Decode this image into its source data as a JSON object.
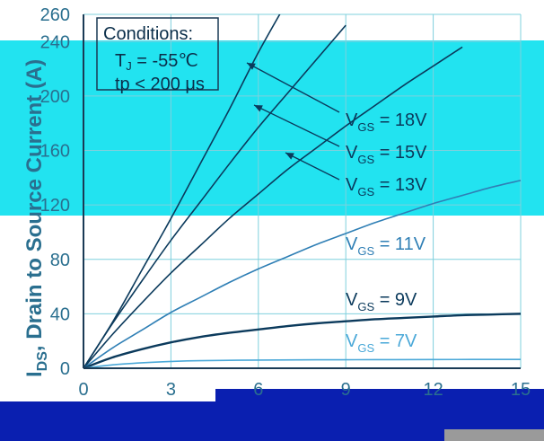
{
  "colors": {
    "cyan_band": "#22e3f0",
    "bottom_bar": "#0a1fb0",
    "bottom_gray": "#9a9a9a",
    "axis": "#1a3a55",
    "grid": "#7fd0dd",
    "dark_curve": "#0b3a5c",
    "mid_curve": "#2f7fb5",
    "light_curve": "#4aa8d8"
  },
  "chart_data": {
    "type": "line",
    "ylabel": "I",
    "ylabel_sub": "DS",
    "ylabel_rest": ", Drain to Source Current (A)",
    "xlim": [
      0,
      15
    ],
    "ylim": [
      0,
      260
    ],
    "x_ticks": [
      "0",
      "3",
      "6",
      "9",
      "12",
      "15"
    ],
    "y_ticks": [
      "0",
      "40",
      "80",
      "120",
      "160",
      "200",
      "240",
      "260"
    ],
    "grid": true,
    "conditions": {
      "title": "Conditions:",
      "tj_label": "T",
      "tj_sub": "J",
      "tj_value": " = -55℃",
      "tp_label": "tp < 200 μs"
    },
    "series": [
      {
        "name": "V",
        "name_sub": "GS",
        "name_rest": " = 18V",
        "x": [
          0,
          1,
          2,
          3,
          4,
          5,
          6,
          7
        ],
        "y": [
          0,
          34,
          72,
          110,
          150,
          190,
          232,
          270
        ]
      },
      {
        "name": "V",
        "name_sub": "GS",
        "name_rest": " = 15V",
        "x": [
          0,
          1,
          2,
          3,
          4,
          5,
          6,
          7,
          8,
          9
        ],
        "y": [
          0,
          33,
          64,
          94,
          122,
          150,
          177,
          202,
          227,
          252
        ]
      },
      {
        "name": "V",
        "name_sub": "GS",
        "name_rest": " = 13V",
        "x": [
          0,
          1,
          2,
          3,
          4,
          5,
          6,
          7,
          8,
          9,
          10,
          11,
          12,
          13
        ],
        "y": [
          0,
          25,
          48,
          70,
          90,
          110,
          128,
          146,
          162,
          178,
          193,
          208,
          222,
          236
        ]
      },
      {
        "name": "V",
        "name_sub": "GS",
        "name_rest": " = 11V",
        "x": [
          0,
          1,
          2,
          3,
          4,
          5,
          6,
          7,
          8,
          9,
          10,
          11,
          12,
          13,
          14,
          15
        ],
        "y": [
          0,
          15,
          28,
          41,
          52,
          63,
          73,
          82,
          91,
          99,
          107,
          114,
          121,
          127,
          133,
          138
        ]
      },
      {
        "name": "V",
        "name_sub": "GS",
        "name_rest": " = 9V",
        "x": [
          0,
          1,
          2,
          3,
          4,
          5,
          6,
          7,
          8,
          9,
          10,
          11,
          12,
          13,
          14,
          15
        ],
        "y": [
          0,
          8,
          14,
          19,
          23,
          26,
          28.5,
          31,
          33,
          34.5,
          36,
          37,
          38,
          39,
          39.5,
          40
        ]
      },
      {
        "name": "V",
        "name_sub": "GS",
        "name_rest": " = 7V",
        "x": [
          0,
          1,
          2,
          3,
          4,
          6,
          8,
          10,
          12,
          15
        ],
        "y": [
          0,
          2.5,
          4,
          5,
          5.6,
          6,
          6.2,
          6.3,
          6.4,
          6.5
        ]
      }
    ]
  }
}
